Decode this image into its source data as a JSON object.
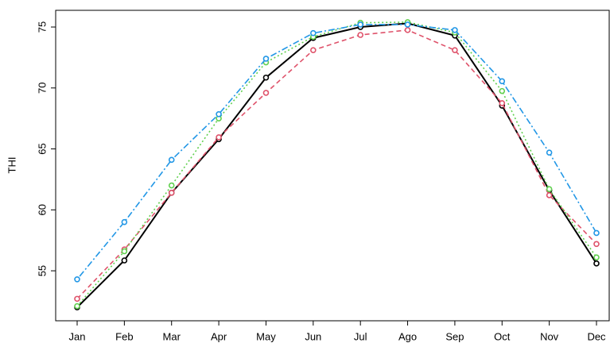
{
  "chart_data": {
    "type": "line",
    "y_label": "THI",
    "categories": [
      "Jan",
      "Feb",
      "Mar",
      "Apr",
      "May",
      "Jun",
      "Jul",
      "Ago",
      "Sep",
      "Oct",
      "Nov",
      "Dec"
    ],
    "series": [
      {
        "color": "#000000",
        "dash": "solid",
        "values": [
          52.0,
          55.85,
          61.4,
          65.8,
          70.85,
          74.1,
          75.0,
          75.3,
          74.3,
          68.55,
          61.6,
          55.6
        ]
      },
      {
        "color": "#DF536B",
        "dash": "dashed",
        "values": [
          52.7,
          56.75,
          61.4,
          65.95,
          69.6,
          73.1,
          74.35,
          74.75,
          73.1,
          68.75,
          61.2,
          57.2
        ]
      },
      {
        "color": "#61D04F",
        "dash": "dotted",
        "values": [
          52.1,
          56.6,
          62.0,
          67.5,
          72.1,
          74.2,
          75.35,
          75.4,
          74.55,
          69.75,
          61.7,
          56.1
        ]
      },
      {
        "color": "#2297E6",
        "dash": "dotdash",
        "values": [
          54.3,
          59.0,
          64.1,
          67.85,
          72.4,
          74.5,
          75.2,
          75.2,
          74.75,
          70.55,
          64.7,
          58.1
        ]
      }
    ],
    "ylim": [
      50.9,
      76.37
    ],
    "yticks": [
      55,
      60,
      65,
      70,
      75
    ]
  }
}
